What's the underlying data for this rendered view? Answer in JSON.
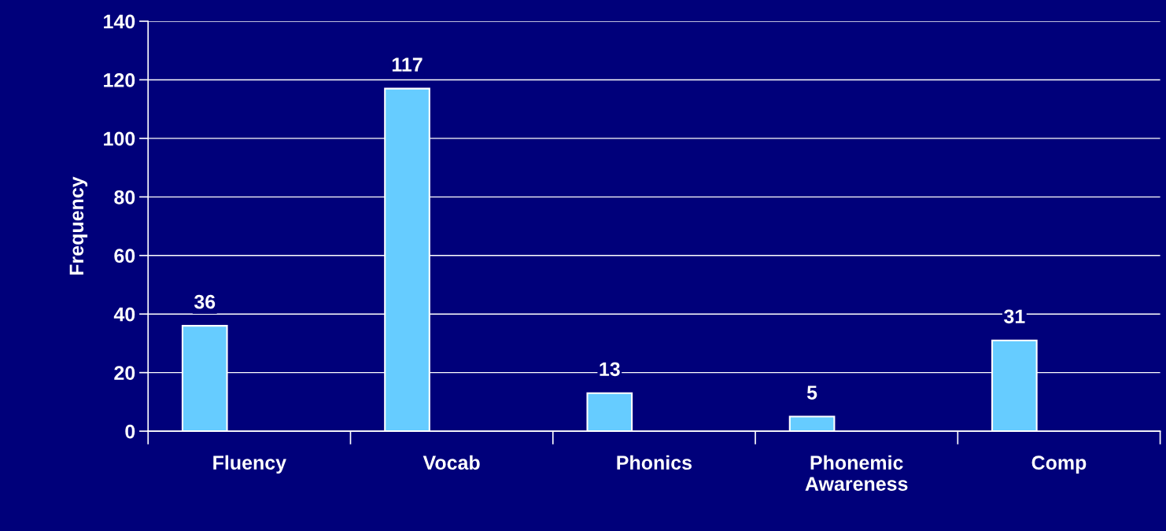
{
  "chart_data": {
    "type": "bar",
    "ylabel": "Frequency",
    "categories": [
      "Fluency",
      "Vocab",
      "Phonics",
      "Phonemic\nAwareness",
      "Comp"
    ],
    "values": [
      36,
      117,
      13,
      5,
      31
    ],
    "color": "#66ccff",
    "ylim": [
      0,
      140
    ],
    "yticks": [
      0,
      20,
      40,
      60,
      80,
      100,
      120,
      140
    ],
    "grid": "y",
    "data_labels": true
  }
}
